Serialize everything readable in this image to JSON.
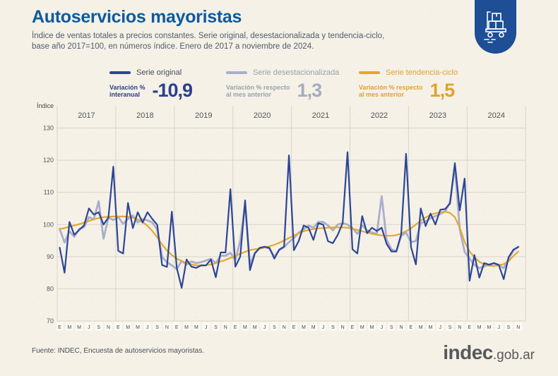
{
  "header": {
    "title": "Autoservicios mayoristas",
    "subtitle_line1": "Índice de ventas totales a precios constantes. Serie original, desestacionalizada y tendencia-ciclo,",
    "subtitle_line2": "base año 2017=100, en números índice. Enero de 2017 a noviembre de 2024.",
    "badge_color": "#1d4e96",
    "badge_icon": "hand-truck-icon"
  },
  "legend": {
    "items": [
      {
        "name": "Serie original",
        "metric_line1": "Variación %",
        "metric_line2": "interanual",
        "value": "-10,9",
        "color": "#2c4596"
      },
      {
        "name": "Serie desestacionalizada",
        "metric_line1": "Variación % respecto",
        "metric_line2": "al mes anterior",
        "value": "1,3",
        "color": "#a9aecb"
      },
      {
        "name": "Serie tendencia-ciclo",
        "metric_line1": "Variación % respecto",
        "metric_line2": "al mes anterior",
        "value": "1,5",
        "color": "#e3a82e"
      }
    ]
  },
  "chart_data": {
    "type": "line",
    "ylabel": "Índice",
    "ylim": [
      70,
      130
    ],
    "yticks": [
      70,
      80,
      90,
      100,
      110,
      120,
      130
    ],
    "grid": true,
    "years": [
      "2017",
      "2018",
      "2019",
      "2020",
      "2021",
      "2022",
      "2023",
      "2024"
    ],
    "month_tick_letters": [
      "E",
      "M",
      "M",
      "J",
      "S",
      "N"
    ],
    "months_total": 95,
    "x_range_note": "Enero 2017 a noviembre 2024, mensual",
    "series": [
      {
        "name": "Serie original",
        "color": "#2c4596",
        "values": [
          92.8,
          85,
          100.8,
          96.8,
          98.3,
          99.7,
          105,
          103.1,
          103.8,
          100,
          102.2,
          118,
          91.8,
          91,
          106.7,
          98.9,
          103.8,
          100.6,
          103.8,
          101.7,
          99.9,
          87.4,
          86.8,
          104,
          86.5,
          80.3,
          89.1,
          86.9,
          86.5,
          87.3,
          87.3,
          89.1,
          83.6,
          91.3,
          91.3,
          111,
          86.9,
          90,
          107.5,
          85.8,
          91,
          92.7,
          93.1,
          92.7,
          89.4,
          92.2,
          93.1,
          121.5,
          92,
          94.9,
          99.7,
          99,
          95.2,
          100.4,
          100,
          94.8,
          94.2,
          96.8,
          100.4,
          122.5,
          92.3,
          91,
          102.6,
          97.3,
          99,
          98,
          99,
          94,
          91.6,
          91.6,
          97,
          122,
          93,
          87.6,
          105,
          99.5,
          103.4,
          100,
          104.6,
          104.8,
          106.5,
          119.1,
          104.4,
          114.3,
          82.5,
          90.5,
          83.5,
          88,
          87.5,
          88,
          87.4,
          83,
          89.8,
          92.2,
          93
        ]
      },
      {
        "name": "Serie desestacionalizada",
        "color": "#a9aecb",
        "values": [
          98.6,
          94.4,
          97.9,
          96.2,
          98.6,
          99.2,
          102.3,
          101.6,
          107.2,
          95.6,
          102.2,
          101.4,
          102.3,
          100.2,
          101.7,
          102.8,
          100.6,
          101.7,
          101.3,
          100.6,
          98.4,
          89.9,
          88.2,
          87.3,
          86.1,
          88.7,
          87.5,
          88.5,
          88,
          88.3,
          88.8,
          89.3,
          88,
          90.3,
          90.3,
          91.2,
          89,
          94.9,
          106.3,
          87.6,
          91.2,
          92.7,
          93,
          92.5,
          90,
          92,
          93,
          94.5,
          95.8,
          97.5,
          98.5,
          99.7,
          99,
          100.8,
          100.8,
          99.7,
          98.2,
          100,
          100.4,
          100,
          98.9,
          97.1,
          99.7,
          98.2,
          97.5,
          97.1,
          108.8,
          95.3,
          92.3,
          91.6,
          96.5,
          97.5,
          94.5,
          94.9,
          100.4,
          101,
          101.9,
          102.6,
          103.3,
          104.1,
          107,
          118,
          98.5,
          91.5,
          89.4,
          87.4,
          86.4,
          87,
          87.5,
          87.9,
          87.5,
          86.4,
          89.3,
          91.9,
          93.1
        ]
      },
      {
        "name": "Serie tendencia-ciclo",
        "color": "#e3a82e",
        "values": [
          98.6,
          98.9,
          99.3,
          99.7,
          100.1,
          100.6,
          101.1,
          101.6,
          102,
          102.3,
          102.4,
          102.5,
          102.5,
          102.5,
          102.4,
          102.1,
          101.6,
          100.8,
          99.6,
          98,
          96,
          93.8,
          91.9,
          90.5,
          89.4,
          88.6,
          88,
          87.6,
          87.3,
          87.2,
          87.3,
          87.6,
          88,
          88.5,
          89,
          89.6,
          90.2,
          90.9,
          91.5,
          92,
          92.3,
          92.5,
          92.8,
          93.2,
          93.7,
          94.3,
          95,
          95.8,
          96.6,
          97.3,
          97.9,
          98.3,
          98.6,
          98.8,
          98.9,
          99,
          99.1,
          99.1,
          99.1,
          99,
          98.7,
          98.3,
          97.9,
          97.5,
          97.1,
          96.8,
          96.6,
          96.5,
          96.5,
          96.7,
          97.2,
          97.9,
          98.8,
          100,
          101.2,
          102.2,
          103,
          103.5,
          103.8,
          104,
          103.6,
          102.3,
          99,
          94.6,
          91.6,
          89.8,
          88.4,
          87.6,
          87.2,
          87.1,
          87.3,
          87.7,
          88.6,
          90.2,
          91.6
        ]
      }
    ]
  },
  "footer": {
    "source": "Fuente: INDEC, Encuesta de autoservicios mayoristas.",
    "logo_main": "indec",
    "logo_suffix": ".gob.ar"
  }
}
